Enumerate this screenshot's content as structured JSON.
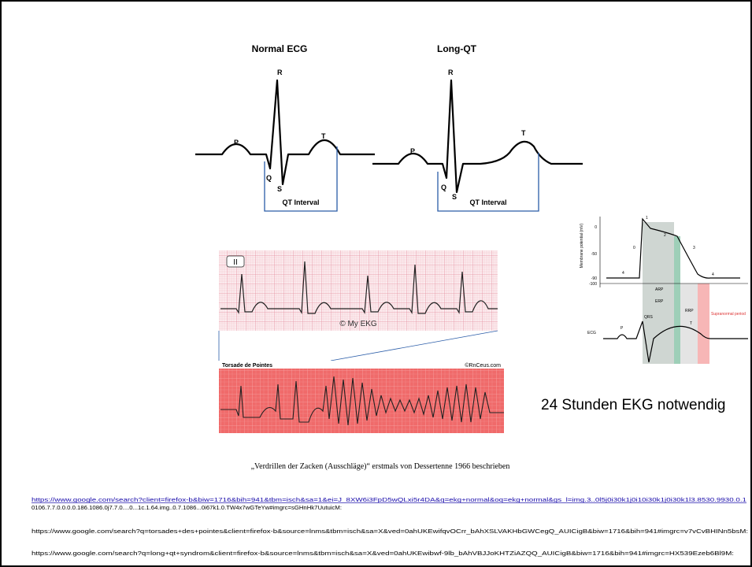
{
  "ecg_figure": {
    "normal_title": "Normal ECG",
    "long_qt_title": "Long-QT",
    "normal_labels": {
      "r": "R",
      "p": "P",
      "q": "Q",
      "s": "S",
      "t": "T",
      "interval": "QT Interval"
    },
    "long_qt_labels": {
      "r": "R",
      "p": "P",
      "q": "Q",
      "s": "S",
      "t": "T",
      "interval": "QT Interval"
    }
  },
  "rhythm_strip": {
    "lead": "II",
    "credit": "© My EKG"
  },
  "torsade_strip": {
    "title": "Torsade de Pointes",
    "credit": "©RnCeus.com"
  },
  "action_potential": {
    "y_axis_label": "Membrane potential (mV)",
    "ticks": [
      "0",
      "-50",
      "-90",
      "-100"
    ],
    "phases": [
      "0",
      "1",
      "2",
      "3",
      "4",
      "4"
    ],
    "periods": [
      "ARP",
      "ERP",
      "RRP",
      "Supranormal period"
    ],
    "ecg_label": "ECG",
    "waves": [
      "P",
      "QRS",
      "T"
    ]
  },
  "note": "24 Stunden EKG notwendig",
  "caption": "„Verdrillen der Zacken (Ausschläge)“ erstmals von Dessertenne 1966 beschrieben",
  "sources": [
    "https://www.google.com/search?client=firefox-b&biw=1716&bih=941&tbm=isch&sa=1&ei=J_8XW6i3FpD5wQLxi5r4DA&q=ekg+normal&oq=ekg+normal&gs_l=img.3..0l5j0i30k1j0i10i30k1j0i30k1l3.8530.9930.0.1",
    "0106.7.7.0.0.0.0.186.1086.0j7.7.0....0...1c.1.64.img..0.7.1086...0i67k1.0.TW4x7wGTeYw#imgrc=sGHnHk7UutuicM:",
    "https://www.google.com/search?q=torsades+des+pointes&client=firefox-b&source=lnms&tbm=isch&sa=X&ved=0ahUKEwifqvOCrr_bAhXSLVAKHbGWCegQ_AUICigB&biw=1716&bih=941#imgrc=v7vCvBHINn5bsM:",
    "https://www.google.com/search?q=long+qt+syndrom&client=firefox-b&source=lnms&tbm=isch&sa=X&ved=0ahUKEwibwf-9lb_bAhVBJJoKHTZiAZQQ_AUICigB&biw=1716&bih=941#imgrc=HX539Ezeb6Bl9M:"
  ]
}
